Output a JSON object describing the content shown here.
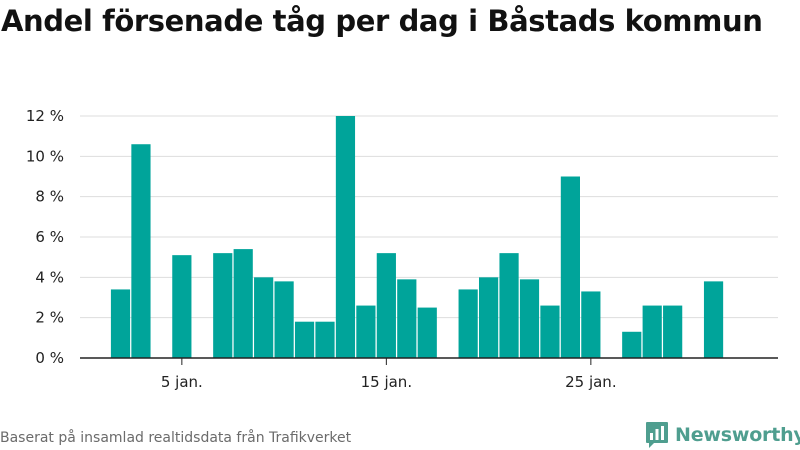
{
  "chart_data": {
    "type": "bar",
    "title": "Andel försenade tåg per dag i Båstads kommun",
    "xlabel": "",
    "ylabel": "",
    "x": [
      2,
      3,
      4,
      5,
      6,
      7,
      8,
      9,
      10,
      11,
      12,
      13,
      14,
      15,
      16,
      17,
      18,
      19,
      20,
      21,
      22,
      23,
      24,
      25,
      26,
      27,
      28,
      29,
      30,
      31
    ],
    "values": [
      3.4,
      10.6,
      0,
      5.1,
      0,
      5.2,
      5.4,
      4.0,
      3.8,
      1.8,
      1.8,
      12.0,
      2.6,
      5.2,
      3.9,
      2.5,
      0,
      3.4,
      4.0,
      5.2,
      3.9,
      2.6,
      9.0,
      3.3,
      0,
      1.3,
      2.6,
      2.6,
      0,
      3.8
    ],
    "ylim": [
      0,
      12
    ],
    "yticks": [
      {
        "value": 0,
        "label": "0 %"
      },
      {
        "value": 2,
        "label": "2 %"
      },
      {
        "value": 4,
        "label": "4 %"
      },
      {
        "value": 6,
        "label": "6 %"
      },
      {
        "value": 8,
        "label": "8 %"
      },
      {
        "value": 10,
        "label": "10 %"
      },
      {
        "value": 12,
        "label": "12 %"
      }
    ],
    "xticks": [
      {
        "value": 5,
        "label": "5 jan."
      },
      {
        "value": 15,
        "label": "15 jan."
      },
      {
        "value": 25,
        "label": "25 jan."
      }
    ],
    "grid": true,
    "bar_color": "#00a49a"
  },
  "footer": {
    "source": "Baserat på insamlad realtidsdata från Trafikverket",
    "brand": "Newsworthy",
    "brand_color": "#4f9e8f"
  },
  "icons": {
    "brand_logo": "newsworthy-logo-icon"
  }
}
